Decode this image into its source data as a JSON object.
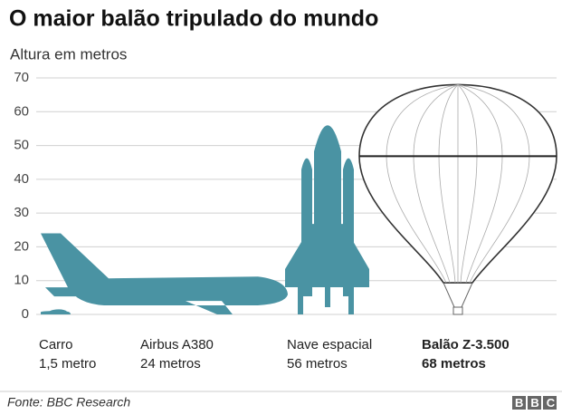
{
  "chart_data": {
    "type": "pictograph",
    "title": "O maior balão tripulado do mundo",
    "subtitle": "Altura em metros",
    "categories": [
      "Carro",
      "Airbus A380",
      "Nave espacial",
      "Balão Z-3.500"
    ],
    "values": [
      1.5,
      24,
      56,
      68
    ],
    "value_labels": [
      "1,5 metro",
      "24 metros",
      "56 metros",
      "68 metros"
    ],
    "color": "#4a93a3",
    "ylim": [
      0,
      70
    ],
    "yticks": [
      0,
      10,
      20,
      30,
      40,
      50,
      60,
      70
    ],
    "grid": true,
    "source": "Fonte: BBC Research",
    "logo": "BBC"
  }
}
